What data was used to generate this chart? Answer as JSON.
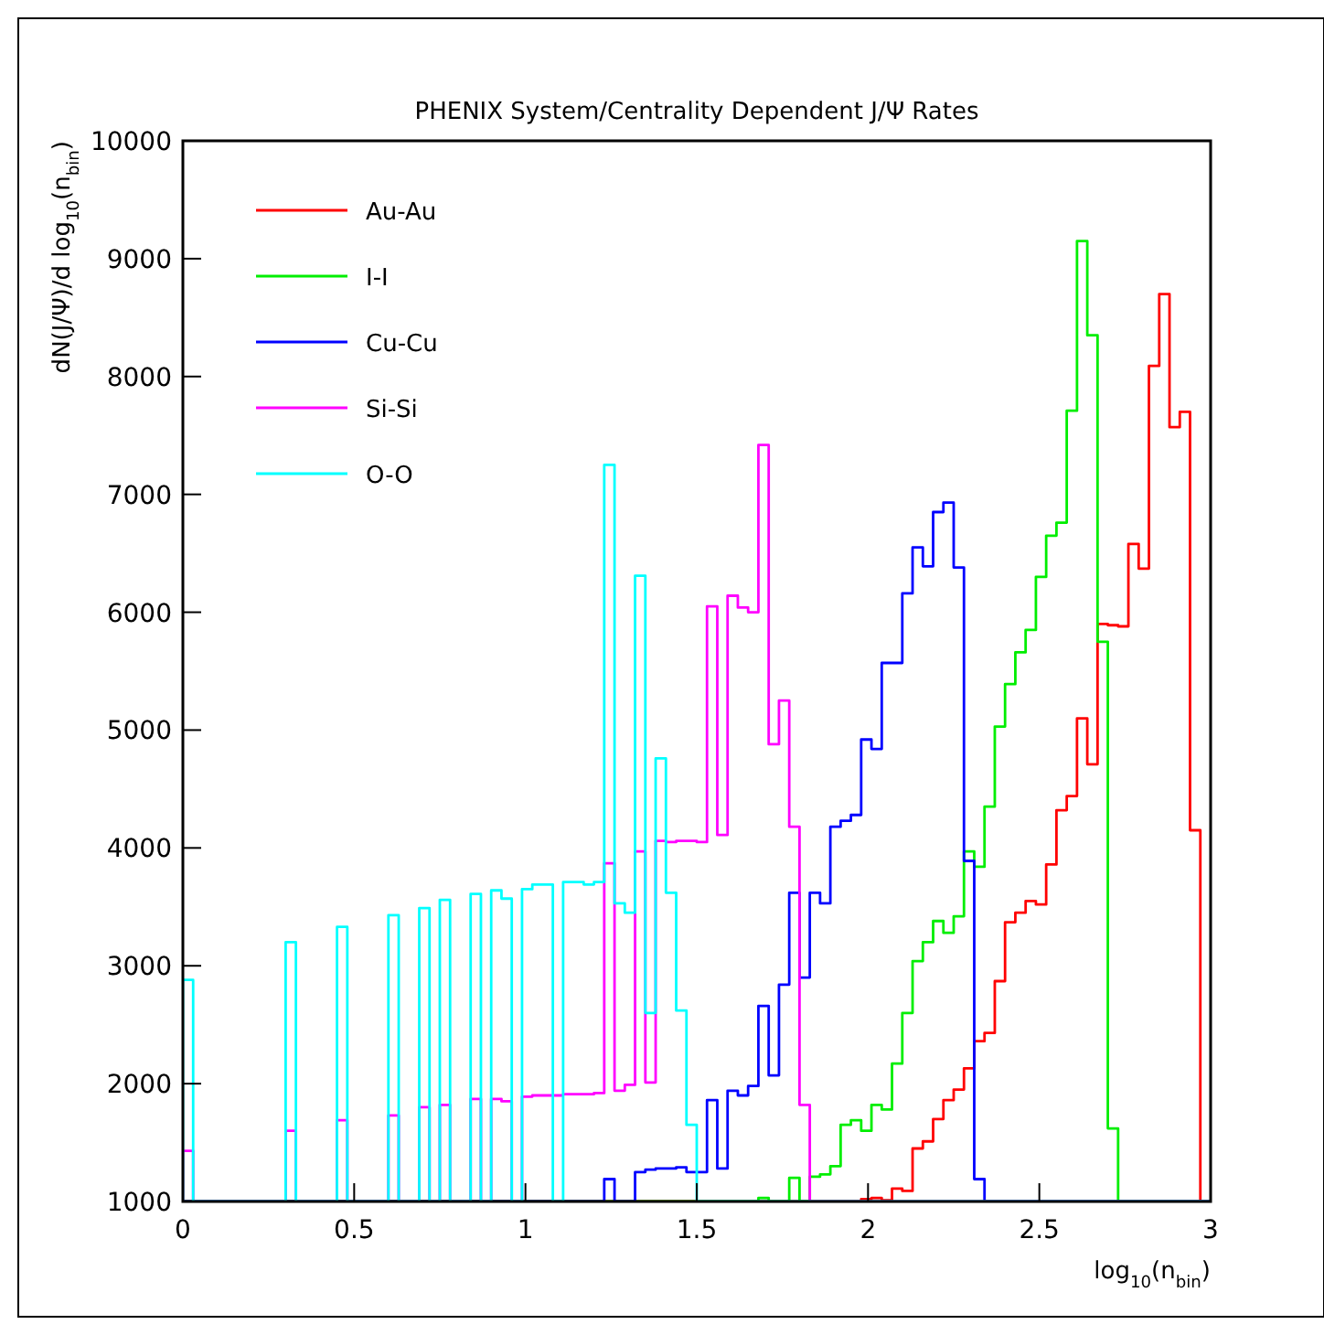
{
  "chart_data": {
    "type": "histogram",
    "title": "PHENIX System/Centrality Dependent J/Ψ Rates",
    "xlabel": "log$_{10}$(n$_{bin}$)",
    "ylabel": "dN(J/Ψ)/d log$_{10}$(n$_{bin}$)",
    "bins": [
      0,
      0.03,
      0.06,
      0.09,
      0.12,
      0.15,
      0.18,
      0.21,
      0.24,
      0.27,
      0.3,
      0.33,
      0.36,
      0.39,
      0.42,
      0.45,
      0.48,
      0.51,
      0.54,
      0.57,
      0.6,
      0.63,
      0.66,
      0.69,
      0.72,
      0.75,
      0.78,
      0.81,
      0.84,
      0.87,
      0.9,
      0.93,
      0.96,
      0.99,
      1.02,
      1.05,
      1.08,
      1.11,
      1.14,
      1.17,
      1.2,
      1.23,
      1.26,
      1.29,
      1.32,
      1.35,
      1.38,
      1.41,
      1.44,
      1.47,
      1.5,
      1.53,
      1.56,
      1.59,
      1.62,
      1.65,
      1.68,
      1.71,
      1.74,
      1.77,
      1.8,
      1.83,
      1.86,
      1.89,
      1.92,
      1.95,
      1.98,
      2.01,
      2.04,
      2.07,
      2.1,
      2.13,
      2.16,
      2.19,
      2.22,
      2.25,
      2.28,
      2.31,
      2.34,
      2.37,
      2.4,
      2.43,
      2.46,
      2.49,
      2.52,
      2.55,
      2.58,
      2.61,
      2.64,
      2.67,
      2.7,
      2.73,
      2.76,
      2.79,
      2.82,
      2.85,
      2.88,
      2.91,
      2.94,
      2.97,
      3
    ],
    "series": [
      {
        "name": "Au-Au",
        "color": "#ff0000",
        "values": [
          null,
          null,
          null,
          null,
          null,
          null,
          null,
          null,
          null,
          null,
          null,
          null,
          null,
          null,
          null,
          null,
          null,
          null,
          null,
          null,
          null,
          null,
          null,
          null,
          null,
          null,
          null,
          null,
          null,
          null,
          null,
          null,
          null,
          null,
          null,
          null,
          null,
          null,
          null,
          null,
          null,
          null,
          null,
          null,
          null,
          null,
          null,
          null,
          null,
          null,
          null,
          null,
          null,
          null,
          null,
          null,
          null,
          null,
          null,
          null,
          null,
          null,
          null,
          null,
          null,
          null,
          1020,
          1030,
          1010,
          1110,
          1090,
          1450,
          1510,
          1700,
          1860,
          1950,
          2130,
          2360,
          2430,
          2870,
          3370,
          3450,
          3550,
          3520,
          3860,
          4320,
          4440,
          5100,
          4710,
          5900,
          5890,
          5880,
          6580,
          6370,
          8090,
          8700,
          7570,
          7700,
          4150,
          null
        ]
      },
      {
        "name": "I-I",
        "color": "#00ee00",
        "values": [
          null,
          null,
          null,
          null,
          null,
          null,
          null,
          null,
          null,
          null,
          null,
          null,
          null,
          null,
          null,
          null,
          null,
          null,
          null,
          null,
          null,
          null,
          null,
          null,
          null,
          null,
          null,
          null,
          null,
          null,
          null,
          null,
          null,
          null,
          null,
          null,
          null,
          null,
          null,
          null,
          null,
          null,
          null,
          null,
          null,
          null,
          null,
          null,
          null,
          null,
          null,
          null,
          null,
          null,
          null,
          null,
          1030,
          null,
          null,
          1200,
          null,
          1210,
          1230,
          1300,
          1650,
          1690,
          1600,
          1820,
          1780,
          2170,
          2600,
          3040,
          3200,
          3380,
          3280,
          3420,
          3970,
          3840,
          4350,
          5030,
          5390,
          5660,
          5850,
          6300,
          6650,
          6760,
          7710,
          9150,
          8350,
          5750,
          1620,
          null,
          null,
          null,
          null,
          null,
          null,
          null,
          null,
          null
        ]
      },
      {
        "name": "Cu-Cu",
        "color": "#0000ff",
        "values": [
          null,
          null,
          null,
          null,
          null,
          null,
          null,
          null,
          null,
          null,
          null,
          null,
          null,
          null,
          null,
          null,
          null,
          null,
          null,
          null,
          null,
          null,
          null,
          null,
          null,
          null,
          null,
          null,
          null,
          null,
          null,
          null,
          null,
          null,
          null,
          null,
          null,
          null,
          null,
          null,
          null,
          1190,
          null,
          null,
          1250,
          1270,
          1280,
          1280,
          1290,
          1250,
          1250,
          1860,
          1280,
          1940,
          1900,
          1980,
          2660,
          2070,
          2840,
          3620,
          2900,
          3620,
          3530,
          4180,
          4230,
          4280,
          4920,
          4840,
          5570,
          5570,
          6160,
          6550,
          6390,
          6850,
          6930,
          6380,
          3890,
          1190,
          null,
          null,
          null,
          null,
          null,
          null,
          null,
          null,
          null,
          null,
          null,
          null,
          null,
          null,
          null,
          null,
          null,
          null,
          null,
          null,
          null,
          null
        ]
      },
      {
        "name": "Si-Si",
        "color": "#ff00ff",
        "values": [
          1430,
          null,
          null,
          null,
          null,
          null,
          null,
          null,
          null,
          null,
          1600,
          null,
          null,
          null,
          null,
          1690,
          null,
          null,
          null,
          null,
          1730,
          null,
          null,
          1800,
          null,
          1820,
          null,
          null,
          1870,
          null,
          1870,
          1850,
          null,
          1890,
          1900,
          1900,
          1900,
          1910,
          1910,
          1910,
          1920,
          3870,
          1940,
          1990,
          3970,
          2010,
          4060,
          4050,
          4060,
          4060,
          4050,
          6050,
          4110,
          6140,
          6040,
          6000,
          7420,
          4880,
          5250,
          4180,
          1820,
          null,
          null,
          null,
          null,
          null,
          null,
          null,
          null,
          null,
          null,
          null,
          null,
          null,
          null,
          null,
          null,
          null,
          null,
          null,
          null,
          null,
          null,
          null,
          null,
          null,
          null,
          null,
          null,
          null,
          null,
          null,
          null,
          null,
          null,
          null,
          null,
          null,
          null,
          null
        ]
      },
      {
        "name": "O-O",
        "color": "#00ffff",
        "values": [
          2880,
          null,
          null,
          null,
          null,
          null,
          null,
          null,
          null,
          null,
          3200,
          null,
          null,
          null,
          null,
          3330,
          null,
          null,
          null,
          null,
          3430,
          null,
          null,
          3490,
          null,
          3560,
          null,
          null,
          3610,
          null,
          3640,
          3570,
          null,
          3650,
          3690,
          3690,
          null,
          3710,
          3710,
          3690,
          3710,
          7250,
          3530,
          3450,
          6310,
          2600,
          4760,
          3620,
          2620,
          1650,
          null,
          null,
          null,
          null,
          null,
          null,
          null,
          null,
          null,
          null,
          null,
          null,
          null,
          null,
          null,
          null,
          null,
          null,
          null,
          null,
          null,
          null,
          null,
          null,
          null,
          null,
          null,
          null,
          null,
          null,
          null,
          null,
          null,
          null,
          null,
          null,
          null,
          null,
          null,
          null,
          null,
          null,
          null,
          null,
          null,
          null,
          null,
          null,
          null,
          null
        ]
      }
    ],
    "xlim": [
      0,
      3
    ],
    "xticks": [
      0,
      0.5,
      1,
      1.5,
      2,
      2.5,
      3
    ],
    "ylim": [
      1000,
      10000
    ],
    "yticks": [
      1000,
      2000,
      3000,
      4000,
      5000,
      6000,
      7000,
      8000,
      9000,
      10000
    ],
    "legend": "top left",
    "grid": false
  }
}
